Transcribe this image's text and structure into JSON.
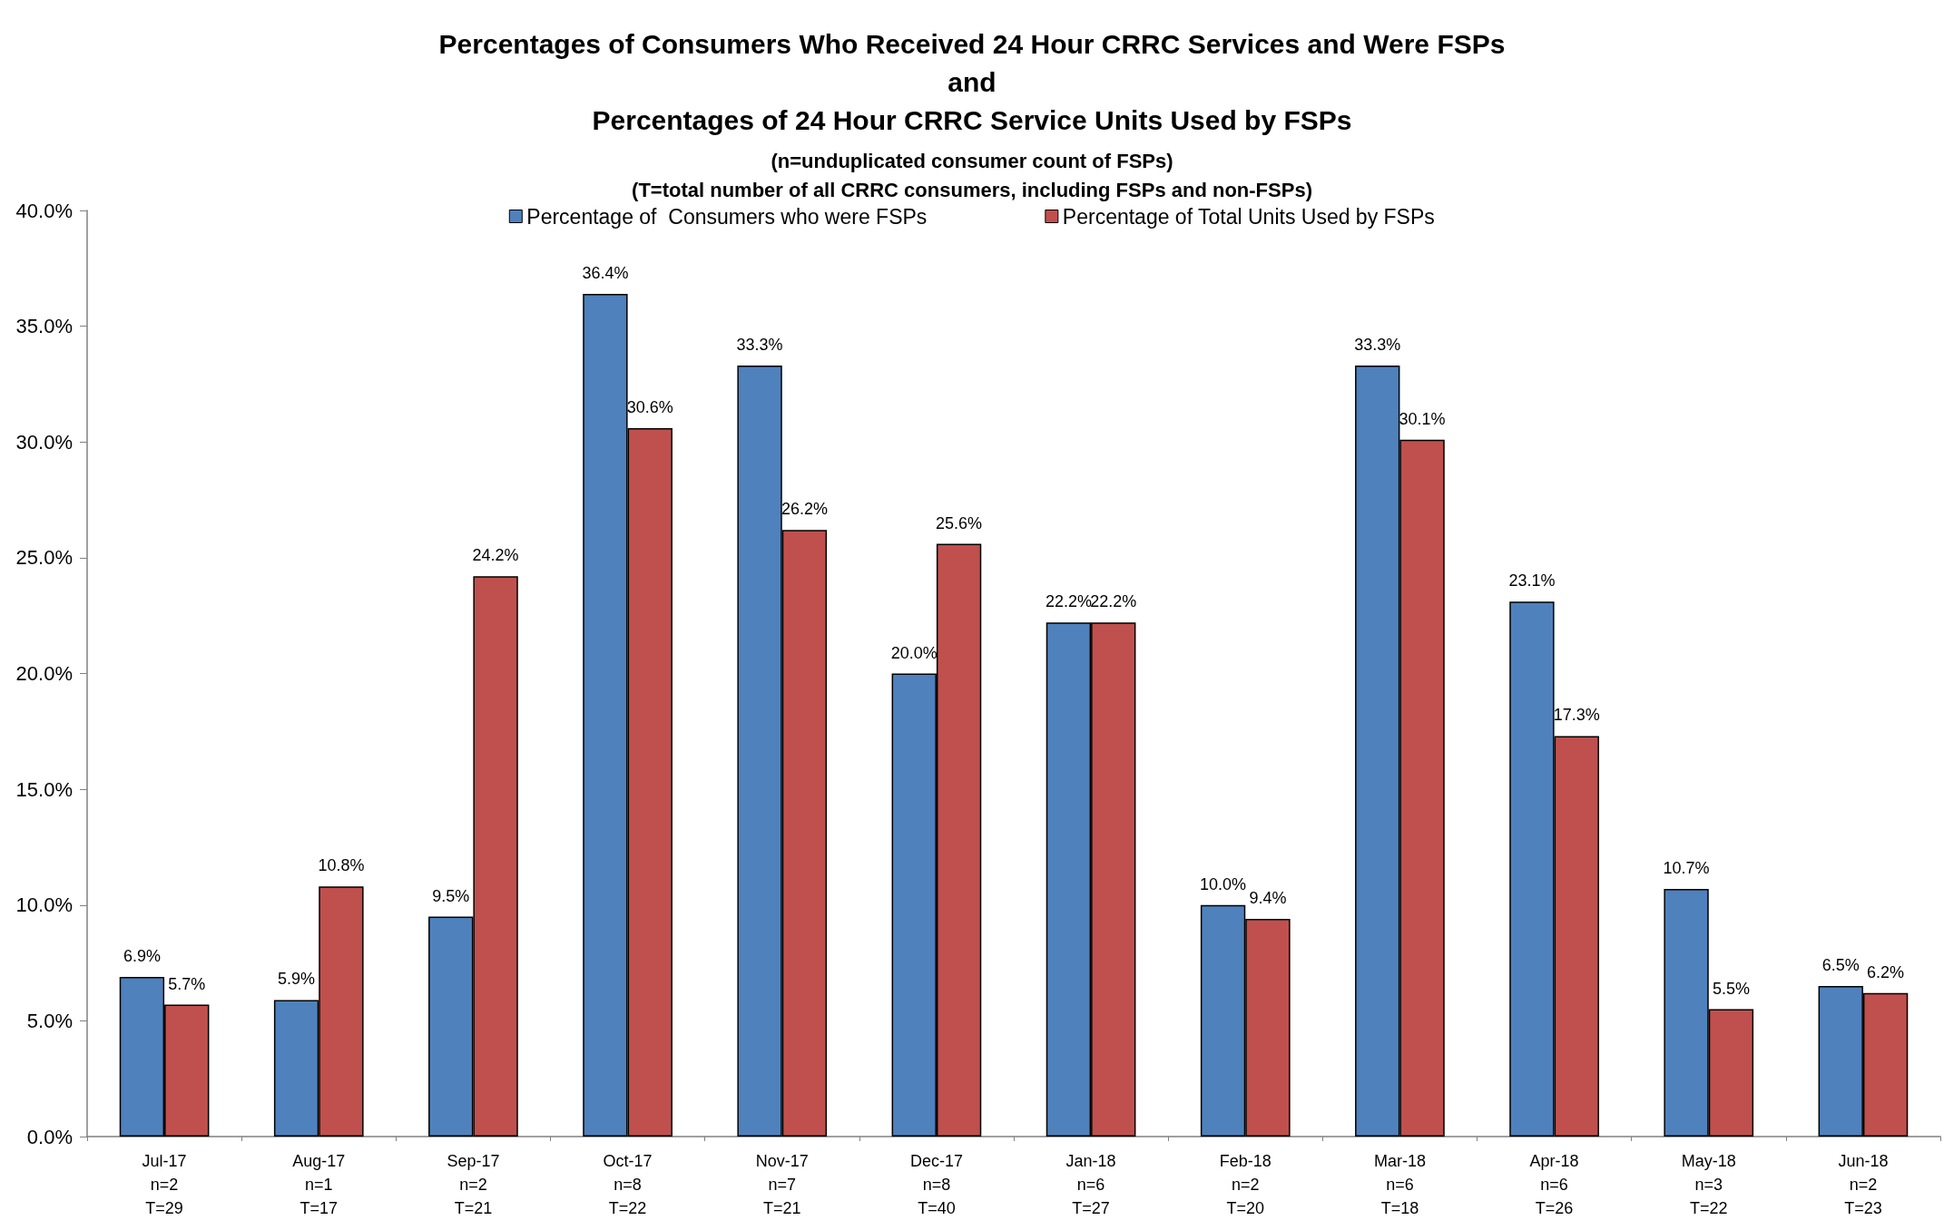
{
  "chart_data": {
    "type": "bar",
    "title": "Percentages of Consumers Who Received 24 Hour CRRC Services and Were FSPs\nand\nPercentages of 24 Hour CRRC Service Units Used by FSPs",
    "subtitle": "(n=unduplicated consumer count of FSPs)\n(T=total number of all CRRC consumers, including FSPs and non-FSPs)",
    "categories": [
      "Jul-17\nn=2\nT=29",
      "Aug-17\nn=1\nT=17",
      "Sep-17\nn=2\nT=21",
      "Oct-17\nn=8\nT=22",
      "Nov-17\nn=7\nT=21",
      "Dec-17\nn=8\nT=40",
      "Jan-18\nn=6\nT=27",
      "Feb-18\nn=2\nT=20",
      "Mar-18\nn=6\nT=18",
      "Apr-18\nn=6\nT=26",
      "May-18\nn=3\nT=22",
      "Jun-18\nn=2\nT=23"
    ],
    "series": [
      {
        "name": "Percentage of  Consumers who were FSPs",
        "color": "#4f81bd",
        "values": [
          6.9,
          5.9,
          9.5,
          36.4,
          33.3,
          20.0,
          22.2,
          10.0,
          33.3,
          23.1,
          10.7,
          6.5
        ],
        "value_labels": [
          "6.9%",
          "5.9%",
          "9.5%",
          "36.4%",
          "33.3%",
          "20.0%",
          "22.2%",
          "10.0%",
          "33.3%",
          "23.1%",
          "10.7%",
          "6.5%"
        ]
      },
      {
        "name": "Percentage of Total Units Used by FSPs",
        "color": "#c0504d",
        "values": [
          5.7,
          10.8,
          24.2,
          30.6,
          26.2,
          25.6,
          22.2,
          9.4,
          30.1,
          17.3,
          5.5,
          6.2
        ],
        "value_labels": [
          "5.7%",
          "10.8%",
          "24.2%",
          "30.6%",
          "26.2%",
          "25.6%",
          "22.2%",
          "9.4%",
          "30.1%",
          "17.3%",
          "5.5%",
          "6.2%"
        ]
      }
    ],
    "ylim": [
      0,
      40
    ],
    "yticks": [
      {
        "value": 0,
        "label": "0.0%"
      },
      {
        "value": 5,
        "label": "5.0%"
      },
      {
        "value": 10,
        "label": "10.0%"
      },
      {
        "value": 15,
        "label": "15.0%"
      },
      {
        "value": 20,
        "label": "20.0%"
      },
      {
        "value": 25,
        "label": "25.0%"
      },
      {
        "value": 30,
        "label": "30.0%"
      },
      {
        "value": 35,
        "label": "35.0%"
      },
      {
        "value": 40,
        "label": "40.0%"
      }
    ],
    "grid": false,
    "legend": "top"
  }
}
